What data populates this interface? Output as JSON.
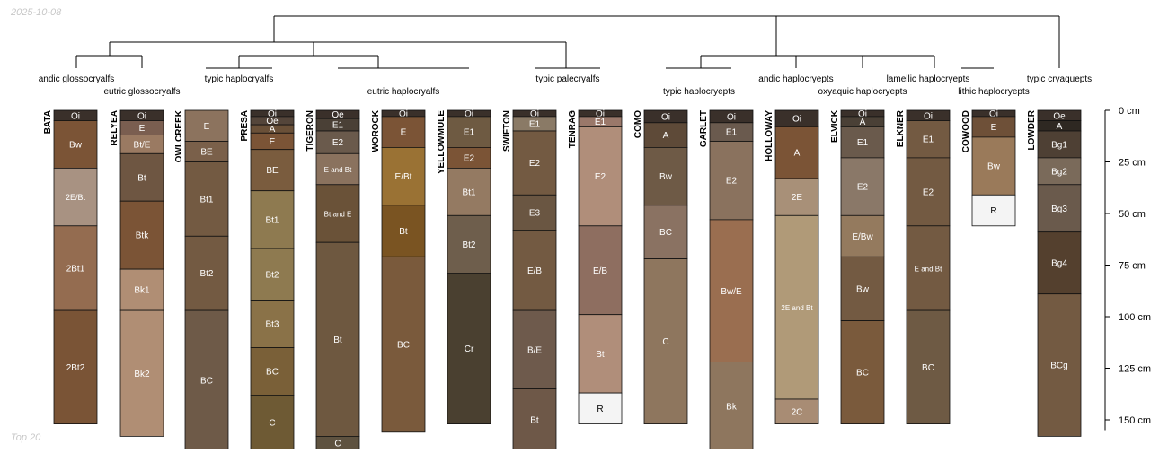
{
  "header": {
    "date": "2025-10-08"
  },
  "footer": {
    "label": "Top 20"
  },
  "chart_data": {
    "type": "soil-profile-sketch",
    "depth_axis": {
      "unit": "cm",
      "ticks": [
        0,
        25,
        50,
        75,
        100,
        125,
        150
      ],
      "max": 155
    },
    "taxa": [
      {
        "label": "andic glossocryalfs"
      },
      {
        "label": "eutric glossocryalfs"
      },
      {
        "label": "typic haplocryalfs"
      },
      {
        "label": "eutric haplocryalfs"
      },
      {
        "label": "typic palecryalfs"
      },
      {
        "label": "typic haplocryepts"
      },
      {
        "label": "andic haplocryepts"
      },
      {
        "label": "oxyaquic haplocryepts"
      },
      {
        "label": "lamellic haplocryepts"
      },
      {
        "label": "lithic haplocryepts"
      },
      {
        "label": "typic cryaquepts"
      }
    ],
    "profiles": [
      {
        "name": "BATA",
        "horizons": [
          {
            "name": "Oi",
            "top": 0,
            "bottom": 5,
            "color": "#3a302a"
          },
          {
            "name": "Bw",
            "top": 5,
            "bottom": 28,
            "color": "#7b5436"
          },
          {
            "name": "2E/Bt",
            "top": 28,
            "bottom": 56,
            "color": "#a89282"
          },
          {
            "name": "2Bt1",
            "top": 56,
            "bottom": 97,
            "color": "#946c50"
          },
          {
            "name": "2Bt2",
            "top": 97,
            "bottom": 152,
            "color": "#7a5436"
          }
        ]
      },
      {
        "name": "RELYEA",
        "horizons": [
          {
            "name": "Oi",
            "top": 0,
            "bottom": 5,
            "color": "#3a302a"
          },
          {
            "name": "E",
            "top": 5,
            "bottom": 12,
            "color": "#7a5e50"
          },
          {
            "name": "Bt/E",
            "top": 12,
            "bottom": 21,
            "color": "#9a7a62"
          },
          {
            "name": "Bt",
            "top": 21,
            "bottom": 44,
            "color": "#6e5642"
          },
          {
            "name": "Btk",
            "top": 44,
            "bottom": 77,
            "color": "#7b5436"
          },
          {
            "name": "Bk1",
            "top": 77,
            "bottom": 97,
            "color": "#b08e74"
          },
          {
            "name": "Bk2",
            "top": 97,
            "bottom": 158,
            "color": "#b08e74"
          }
        ]
      },
      {
        "name": "OWLCREEK",
        "horizons": [
          {
            "name": "E",
            "top": 0,
            "bottom": 15,
            "color": "#8c735e"
          },
          {
            "name": "BE",
            "top": 15,
            "bottom": 25,
            "color": "#7a604a"
          },
          {
            "name": "Bt1",
            "top": 25,
            "bottom": 61,
            "color": "#735a42"
          },
          {
            "name": "Bt2",
            "top": 61,
            "bottom": 97,
            "color": "#735a42"
          },
          {
            "name": "BC",
            "top": 97,
            "bottom": 165,
            "color": "#6e5a48"
          }
        ]
      },
      {
        "name": "PRESA",
        "horizons": [
          {
            "name": "Oi",
            "top": 0,
            "bottom": 3,
            "color": "#3a302a"
          },
          {
            "name": "Oe",
            "top": 3,
            "bottom": 7,
            "color": "#54453a"
          },
          {
            "name": "A",
            "top": 7,
            "bottom": 11,
            "color": "#6a5038"
          },
          {
            "name": "E",
            "top": 11,
            "bottom": 19,
            "color": "#7b5436"
          },
          {
            "name": "BE",
            "top": 19,
            "bottom": 39,
            "color": "#7a5c3e"
          },
          {
            "name": "Bt1",
            "top": 39,
            "bottom": 67,
            "color": "#8e7a50"
          },
          {
            "name": "Bt2",
            "top": 67,
            "bottom": 92,
            "color": "#8e7a50"
          },
          {
            "name": "Bt3",
            "top": 92,
            "bottom": 115,
            "color": "#8a7248"
          },
          {
            "name": "BC",
            "top": 115,
            "bottom": 138,
            "color": "#7a6038"
          },
          {
            "name": "C",
            "top": 138,
            "bottom": 165,
            "color": "#6e5a34"
          }
        ]
      },
      {
        "name": "TIGERON",
        "horizons": [
          {
            "name": "Oe",
            "top": 0,
            "bottom": 4,
            "color": "#3a302a"
          },
          {
            "name": "E1",
            "top": 4,
            "bottom": 10,
            "color": "#4a4036"
          },
          {
            "name": "E2",
            "top": 10,
            "bottom": 21,
            "color": "#6a5a4c"
          },
          {
            "name": "E and Bt",
            "top": 21,
            "bottom": 36,
            "color": "#8a725e"
          },
          {
            "name": "Bt and E",
            "top": 36,
            "bottom": 64,
            "color": "#6a5238"
          },
          {
            "name": "Bt",
            "top": 64,
            "bottom": 158,
            "color": "#6e5840"
          },
          {
            "name": "C",
            "top": 158,
            "bottom": 170,
            "color": "#5e5240"
          }
        ]
      },
      {
        "name": "WOROCK",
        "horizons": [
          {
            "name": "Oi",
            "top": 0,
            "bottom": 3,
            "color": "#3a302a"
          },
          {
            "name": "E",
            "top": 3,
            "bottom": 18,
            "color": "#7b5436"
          },
          {
            "name": "E/Bt",
            "top": 18,
            "bottom": 46,
            "color": "#9a7234"
          },
          {
            "name": "Bt",
            "top": 46,
            "bottom": 71,
            "color": "#7a5422"
          },
          {
            "name": "BC",
            "top": 71,
            "bottom": 156,
            "color": "#7a5a3c"
          }
        ]
      },
      {
        "name": "YELLOWMULE",
        "horizons": [
          {
            "name": "Oi",
            "top": 0,
            "bottom": 3,
            "color": "#3a302a"
          },
          {
            "name": "E1",
            "top": 3,
            "bottom": 18,
            "color": "#6e5a42"
          },
          {
            "name": "E2",
            "top": 18,
            "bottom": 28,
            "color": "#7b5436"
          },
          {
            "name": "Bt1",
            "top": 28,
            "bottom": 51,
            "color": "#947a62"
          },
          {
            "name": "Bt2",
            "top": 51,
            "bottom": 79,
            "color": "#6e5e4c"
          },
          {
            "name": "Cr",
            "top": 79,
            "bottom": 152,
            "color": "#4a4030"
          }
        ]
      },
      {
        "name": "SWIFTON",
        "horizons": [
          {
            "name": "Oi",
            "top": 0,
            "bottom": 3,
            "color": "#3a302a"
          },
          {
            "name": "E1",
            "top": 3,
            "bottom": 10,
            "color": "#8a7a66"
          },
          {
            "name": "E2",
            "top": 10,
            "bottom": 41,
            "color": "#735a42"
          },
          {
            "name": "E3",
            "top": 41,
            "bottom": 58,
            "color": "#6a5642"
          },
          {
            "name": "E/B",
            "top": 58,
            "bottom": 97,
            "color": "#735a42"
          },
          {
            "name": "B/E",
            "top": 97,
            "bottom": 135,
            "color": "#6e5a4c"
          },
          {
            "name": "Bt",
            "top": 135,
            "bottom": 165,
            "color": "#6e5848"
          }
        ]
      },
      {
        "name": "TENRAG",
        "horizons": [
          {
            "name": "Oi",
            "top": 0,
            "bottom": 3,
            "color": "#3a302a"
          },
          {
            "name": "E1",
            "top": 3,
            "bottom": 8,
            "color": "#9a786a"
          },
          {
            "name": "E2",
            "top": 8,
            "bottom": 56,
            "color": "#b08e7a"
          },
          {
            "name": "E/B",
            "top": 56,
            "bottom": 99,
            "color": "#8e6e60"
          },
          {
            "name": "Bt",
            "top": 99,
            "bottom": 137,
            "color": "#b08e7a"
          },
          {
            "name": "R",
            "top": 137,
            "bottom": 152,
            "color": "#f4f4f4"
          }
        ]
      },
      {
        "name": "COMO",
        "horizons": [
          {
            "name": "Oi",
            "top": 0,
            "bottom": 6,
            "color": "#3a302a"
          },
          {
            "name": "A",
            "top": 6,
            "bottom": 18,
            "color": "#5e4a38"
          },
          {
            "name": "Bw",
            "top": 18,
            "bottom": 46,
            "color": "#6e5a46"
          },
          {
            "name": "BC",
            "top": 46,
            "bottom": 72,
            "color": "#8a7262"
          },
          {
            "name": "C",
            "top": 72,
            "bottom": 152,
            "color": "#8e765e"
          }
        ]
      },
      {
        "name": "GARLET",
        "horizons": [
          {
            "name": "Oi",
            "top": 0,
            "bottom": 6,
            "color": "#3a302a"
          },
          {
            "name": "E1",
            "top": 6,
            "bottom": 15,
            "color": "#6a5a4e"
          },
          {
            "name": "E2",
            "top": 15,
            "bottom": 53,
            "color": "#8a725e"
          },
          {
            "name": "Bw/E",
            "top": 53,
            "bottom": 122,
            "color": "#9a6e50"
          },
          {
            "name": "Bk",
            "top": 122,
            "bottom": 170,
            "color": "#8e765e"
          }
        ]
      },
      {
        "name": "HOLLOWAY",
        "horizons": [
          {
            "name": "Oi",
            "top": 0,
            "bottom": 8,
            "color": "#3a302a"
          },
          {
            "name": "A",
            "top": 8,
            "bottom": 33,
            "color": "#7b5436"
          },
          {
            "name": "2E",
            "top": 33,
            "bottom": 51,
            "color": "#a89078"
          },
          {
            "name": "2E and Bt",
            "top": 51,
            "bottom": 140,
            "color": "#b09a78"
          },
          {
            "name": "2C",
            "top": 140,
            "bottom": 152,
            "color": "#a88c74"
          }
        ]
      },
      {
        "name": "ELVICK",
        "horizons": [
          {
            "name": "Oi",
            "top": 0,
            "bottom": 3,
            "color": "#3a302a"
          },
          {
            "name": "A",
            "top": 3,
            "bottom": 8,
            "color": "#4a4036"
          },
          {
            "name": "E1",
            "top": 8,
            "bottom": 23,
            "color": "#6a5a4c"
          },
          {
            "name": "E2",
            "top": 23,
            "bottom": 51,
            "color": "#8a7868"
          },
          {
            "name": "E/Bw",
            "top": 51,
            "bottom": 71,
            "color": "#947a5e"
          },
          {
            "name": "Bw",
            "top": 71,
            "bottom": 102,
            "color": "#735a42"
          },
          {
            "name": "BC",
            "top": 102,
            "bottom": 152,
            "color": "#7a5a3c"
          }
        ]
      },
      {
        "name": "ELKNER",
        "horizons": [
          {
            "name": "Oi",
            "top": 0,
            "bottom": 5,
            "color": "#3a302a"
          },
          {
            "name": "E1",
            "top": 5,
            "bottom": 23,
            "color": "#735a42"
          },
          {
            "name": "E2",
            "top": 23,
            "bottom": 56,
            "color": "#735a42"
          },
          {
            "name": "E and Bt",
            "top": 56,
            "bottom": 97,
            "color": "#735a42"
          },
          {
            "name": "BC",
            "top": 97,
            "bottom": 152,
            "color": "#6e5a44"
          }
        ]
      },
      {
        "name": "COWOOD",
        "horizons": [
          {
            "name": "Oi",
            "top": 0,
            "bottom": 3,
            "color": "#3a302a"
          },
          {
            "name": "E",
            "top": 3,
            "bottom": 13,
            "color": "#6e5038"
          },
          {
            "name": "Bw",
            "top": 13,
            "bottom": 41,
            "color": "#9a7a5a"
          },
          {
            "name": "R",
            "top": 41,
            "bottom": 56,
            "color": "#f4f4f4"
          }
        ]
      },
      {
        "name": "LOWDER",
        "horizons": [
          {
            "name": "Oe",
            "top": 0,
            "bottom": 5,
            "color": "#3a302a"
          },
          {
            "name": "A",
            "top": 5,
            "bottom": 10,
            "color": "#2e2822"
          },
          {
            "name": "Bg1",
            "top": 10,
            "bottom": 23,
            "color": "#4e4034"
          },
          {
            "name": "Bg2",
            "top": 23,
            "bottom": 36,
            "color": "#7a6a5a"
          },
          {
            "name": "Bg3",
            "top": 36,
            "bottom": 59,
            "color": "#6a5a4c"
          },
          {
            "name": "Bg4",
            "top": 59,
            "bottom": 89,
            "color": "#54402e"
          },
          {
            "name": "BCg",
            "top": 89,
            "bottom": 158,
            "color": "#735a42"
          }
        ]
      }
    ]
  }
}
